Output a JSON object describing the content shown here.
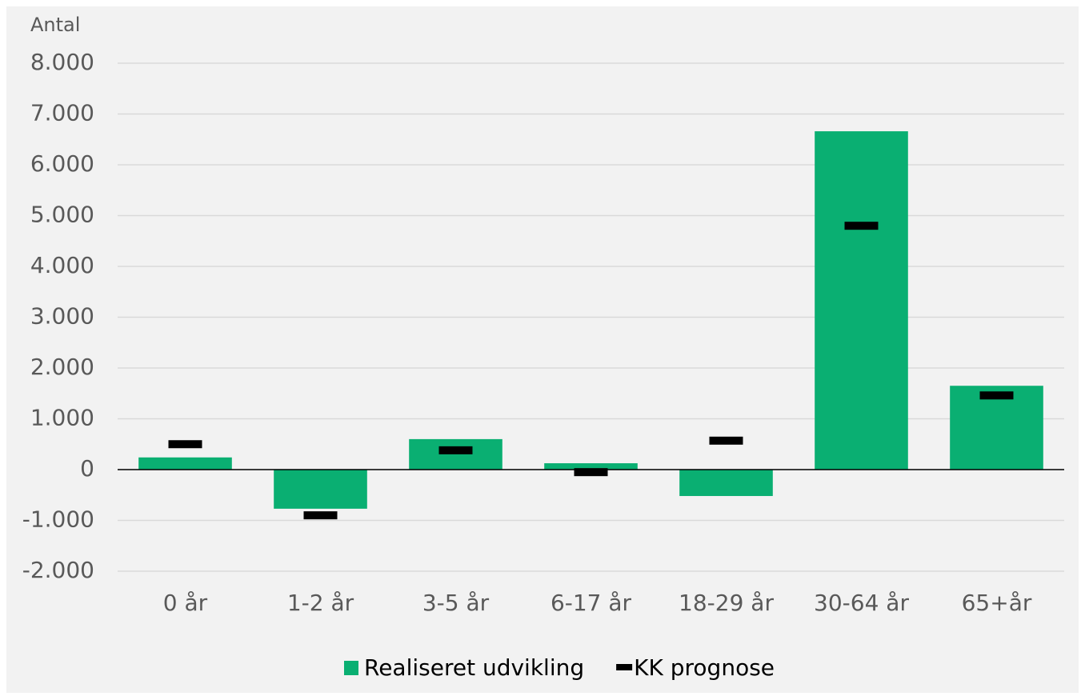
{
  "chart_data": {
    "type": "bar",
    "y_axis_label": "Antal",
    "categories": [
      "0 år",
      "1-2 år",
      "3-5 år",
      "6-17 år",
      "18-29 år",
      "30-64 år",
      "65+år"
    ],
    "series": [
      {
        "name": "Realiseret udvikling",
        "type": "bar",
        "color": "#0aaf72",
        "values": [
          240,
          -770,
          600,
          125,
          -520,
          6660,
          1650
        ]
      },
      {
        "name": "KK prognose",
        "type": "marker",
        "color": "#000000",
        "values": [
          500,
          -900,
          380,
          -50,
          570,
          4800,
          1460
        ]
      }
    ],
    "ylim": [
      -2000,
      8000
    ],
    "yticks": [
      {
        "value": -2000,
        "label": "-2.000"
      },
      {
        "value": -1000,
        "label": "-1.000"
      },
      0,
      {
        "value": 1000,
        "label": "1.000"
      },
      {
        "value": 2000,
        "label": "2.000"
      },
      {
        "value": 3000,
        "label": "3.000"
      },
      {
        "value": 4000,
        "label": "4.000"
      },
      {
        "value": 5000,
        "label": "5.000"
      },
      {
        "value": 6000,
        "label": "6.000"
      },
      {
        "value": 7000,
        "label": "7.000"
      },
      {
        "value": 8000,
        "label": "8.000"
      }
    ],
    "grid": true,
    "legend": "bottom"
  }
}
